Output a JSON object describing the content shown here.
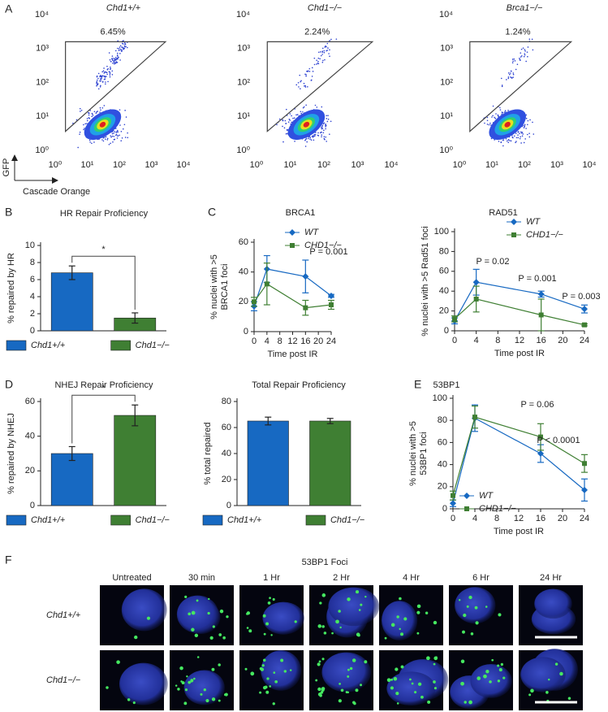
{
  "chart_data": [
    {
      "type": "density",
      "panel_label": "A",
      "title": "Chd1+/+",
      "values": [
        6.45
      ],
      "value_labels": [
        "6.45%"
      ],
      "xlabel": "Cascade Orange",
      "ylabel": "GFP",
      "log_scale": true,
      "xlim": [
        1,
        10000
      ],
      "ylim": [
        1,
        10000
      ],
      "xticks": [
        {
          "value": 1,
          "label": "10⁰"
        },
        {
          "value": 10,
          "label": "10¹"
        },
        {
          "value": 100,
          "label": "10²"
        },
        {
          "value": 1000,
          "label": "10³"
        },
        {
          "value": 10000,
          "label": "10⁴"
        }
      ],
      "yticks": [
        {
          "value": 1,
          "label": "10⁰"
        },
        {
          "value": 10,
          "label": "10¹"
        },
        {
          "value": 100,
          "label": "10²"
        },
        {
          "value": 1000,
          "label": "10³"
        },
        {
          "value": 10000,
          "label": "10⁴"
        }
      ]
    },
    {
      "type": "density",
      "title": "Chd1−/−",
      "values": [
        2.24
      ],
      "value_labels": [
        "2.24%"
      ],
      "log_scale": true,
      "xlim": [
        1,
        10000
      ],
      "ylim": [
        1,
        10000
      ],
      "xticks": [
        {
          "value": 1,
          "label": "10⁰"
        },
        {
          "value": 10,
          "label": "10¹"
        },
        {
          "value": 100,
          "label": "10²"
        },
        {
          "value": 1000,
          "label": "10³"
        },
        {
          "value": 10000,
          "label": "10⁴"
        }
      ],
      "yticks": [
        {
          "value": 1,
          "label": "10⁰"
        },
        {
          "value": 10,
          "label": "10¹"
        },
        {
          "value": 100,
          "label": "10²"
        },
        {
          "value": 1000,
          "label": "10³"
        },
        {
          "value": 10000,
          "label": "10⁴"
        }
      ]
    },
    {
      "type": "density",
      "title": "Brca1−/−",
      "values": [
        1.24
      ],
      "value_labels": [
        "1.24%"
      ],
      "log_scale": true,
      "xlim": [
        1,
        10000
      ],
      "ylim": [
        1,
        10000
      ],
      "xticks": [
        {
          "value": 1,
          "label": "10⁰"
        },
        {
          "value": 10,
          "label": "10¹"
        },
        {
          "value": 100,
          "label": "10²"
        },
        {
          "value": 1000,
          "label": "10³"
        },
        {
          "value": 10000,
          "label": "10⁴"
        }
      ],
      "yticks": [
        {
          "value": 1,
          "label": "10⁰"
        },
        {
          "value": 10,
          "label": "10¹"
        },
        {
          "value": 100,
          "label": "10²"
        },
        {
          "value": 1000,
          "label": "10³"
        },
        {
          "value": 10000,
          "label": "10⁴"
        }
      ]
    },
    {
      "type": "bar",
      "panel_label": "B",
      "title": "HR Repair Proficiency",
      "ylabel": [
        "% repaired by HR"
      ],
      "categories": [
        "Chd1+/+",
        "Chd1−/−"
      ],
      "values": [
        6.8,
        1.5
      ],
      "errors": [
        0.8,
        0.6
      ],
      "colors": [
        "#1769c2",
        "#3f7f33"
      ],
      "ylim": [
        0,
        10
      ],
      "yticks": [
        0,
        2,
        4,
        6,
        8,
        10
      ],
      "significance": "*",
      "legend": "bottom"
    },
    {
      "type": "line",
      "panel_label": "C",
      "title": "BRCA1",
      "xlabel": "Time post IR",
      "ylabel": [
        "% nuclei with >5",
        "BRCA1 foci"
      ],
      "x": [
        0,
        4,
        16,
        24
      ],
      "xlim": [
        0,
        24
      ],
      "xticks": [
        0,
        4,
        8,
        12,
        16,
        20,
        24
      ],
      "ylim": [
        0,
        60
      ],
      "yticks": [
        0,
        20,
        40,
        60
      ],
      "series": [
        {
          "name": "WT",
          "color": "#1769c2",
          "marker": "diamond",
          "values": [
            17,
            42,
            37,
            24
          ],
          "errors": [
            3,
            9,
            11,
            1
          ]
        },
        {
          "name": "CHD1−/−",
          "color": "#3f7f33",
          "marker": "square",
          "values": [
            20,
            32,
            16,
            18
          ],
          "errors": [
            3,
            14,
            5,
            3
          ]
        }
      ],
      "annotations": [
        "P = 0.001"
      ],
      "legend": "upper right"
    },
    {
      "type": "line",
      "title": "RAD51",
      "xlabel": "Time post IR",
      "ylabel": [
        "% nuclei with >5 Rad51 foci"
      ],
      "x": [
        0,
        4,
        16,
        24
      ],
      "xlim": [
        0,
        24
      ],
      "xticks": [
        0,
        4,
        8,
        12,
        16,
        20,
        24
      ],
      "ylim": [
        0,
        100
      ],
      "yticks": [
        0,
        20,
        40,
        60,
        80,
        100
      ],
      "series": [
        {
          "name": "WT",
          "color": "#1769c2",
          "marker": "diamond",
          "values": [
            10,
            49,
            37,
            22
          ],
          "errors": [
            3,
            13,
            3,
            4
          ]
        },
        {
          "name": "CHD1−/−",
          "color": "#3f7f33",
          "marker": "square",
          "values": [
            12,
            32,
            16,
            6
          ],
          "errors": [
            3,
            13,
            16,
            1
          ]
        }
      ],
      "annotations": [
        "P = 0.02",
        "P = 0.001",
        "P = 0.003"
      ],
      "legend": "upper right"
    },
    {
      "type": "bar",
      "panel_label": "D",
      "title": "NHEJ Repair Proficiency",
      "ylabel": [
        "% repaired by NHEJ"
      ],
      "categories": [
        "Chd1+/+",
        "Chd1−/−"
      ],
      "values": [
        30,
        52
      ],
      "errors": [
        4,
        6
      ],
      "colors": [
        "#1769c2",
        "#3f7f33"
      ],
      "ylim": [
        0,
        60
      ],
      "yticks": [
        0,
        20,
        40,
        60
      ],
      "significance": "*",
      "legend": "bottom"
    },
    {
      "type": "bar",
      "title": "Total Repair Proficiency",
      "ylabel": [
        "% total repaired"
      ],
      "categories": [
        "Chd1+/+",
        "Chd1−/−"
      ],
      "values": [
        65,
        65
      ],
      "errors": [
        3,
        2
      ],
      "colors": [
        "#1769c2",
        "#3f7f33"
      ],
      "ylim": [
        0,
        80
      ],
      "yticks": [
        0,
        20,
        40,
        60,
        80
      ],
      "legend": "bottom"
    },
    {
      "type": "line",
      "panel_label": "E",
      "title": "53BP1",
      "xlabel": "Time post IR",
      "ylabel": [
        "% nuclei with >5",
        "53BP1 foci"
      ],
      "x": [
        0,
        4,
        16,
        24
      ],
      "xlim": [
        0,
        24
      ],
      "xticks": [
        0,
        4,
        8,
        12,
        16,
        20,
        24
      ],
      "ylim": [
        0,
        100
      ],
      "yticks": [
        0,
        20,
        40,
        60,
        80,
        100
      ],
      "series": [
        {
          "name": "WT",
          "color": "#1769c2",
          "marker": "diamond",
          "values": [
            5,
            82,
            50,
            17
          ],
          "errors": [
            3,
            12,
            8,
            10
          ]
        },
        {
          "name": "CHD1−/−",
          "color": "#3f7f33",
          "marker": "square",
          "values": [
            12,
            83,
            65,
            41
          ],
          "errors": [
            4,
            10,
            12,
            8
          ]
        }
      ],
      "annotations": [
        "P = 0.06",
        "P < 0.0001"
      ],
      "legend": "lower left"
    }
  ],
  "figure_f": {
    "panel_label": "F",
    "title": "53BP1 Foci",
    "columns": [
      "Untreated",
      "30 min",
      "1 Hr",
      "2 Hr",
      "4 Hr",
      "6 Hr",
      "24 Hr"
    ],
    "rows": [
      "Chd1+/+",
      "Chd1−/−"
    ]
  }
}
